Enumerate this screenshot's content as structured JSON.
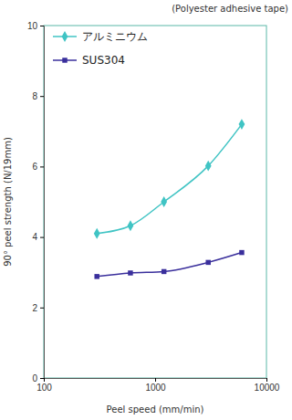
{
  "chart_data": {
    "type": "line",
    "title": "(Polyester adhesive tape)",
    "x_label": "Peel speed (mm/min)",
    "y_label": "90° peel strength (N/19mm)",
    "x": [
      300,
      600,
      1200,
      3000,
      6000
    ],
    "series": [
      {
        "name": "アルミニウム",
        "color": "#40c4c4",
        "marker": "diamond",
        "line_style": "solid",
        "values": [
          4.1,
          4.32,
          5.0,
          6.02,
          7.2
        ]
      },
      {
        "name": "SUS304",
        "color": "#3a2f9c",
        "marker": "square",
        "line_style": "solid",
        "values": [
          2.88,
          2.98,
          3.02,
          3.28,
          3.56
        ]
      }
    ],
    "xlim": [
      100,
      10000
    ],
    "xticks": [
      100,
      1000,
      10000
    ],
    "ylim": [
      0,
      10
    ],
    "yticks": [
      0,
      2,
      4,
      6,
      8,
      10
    ],
    "log": "x",
    "grid": false,
    "legend": "upper left"
  }
}
